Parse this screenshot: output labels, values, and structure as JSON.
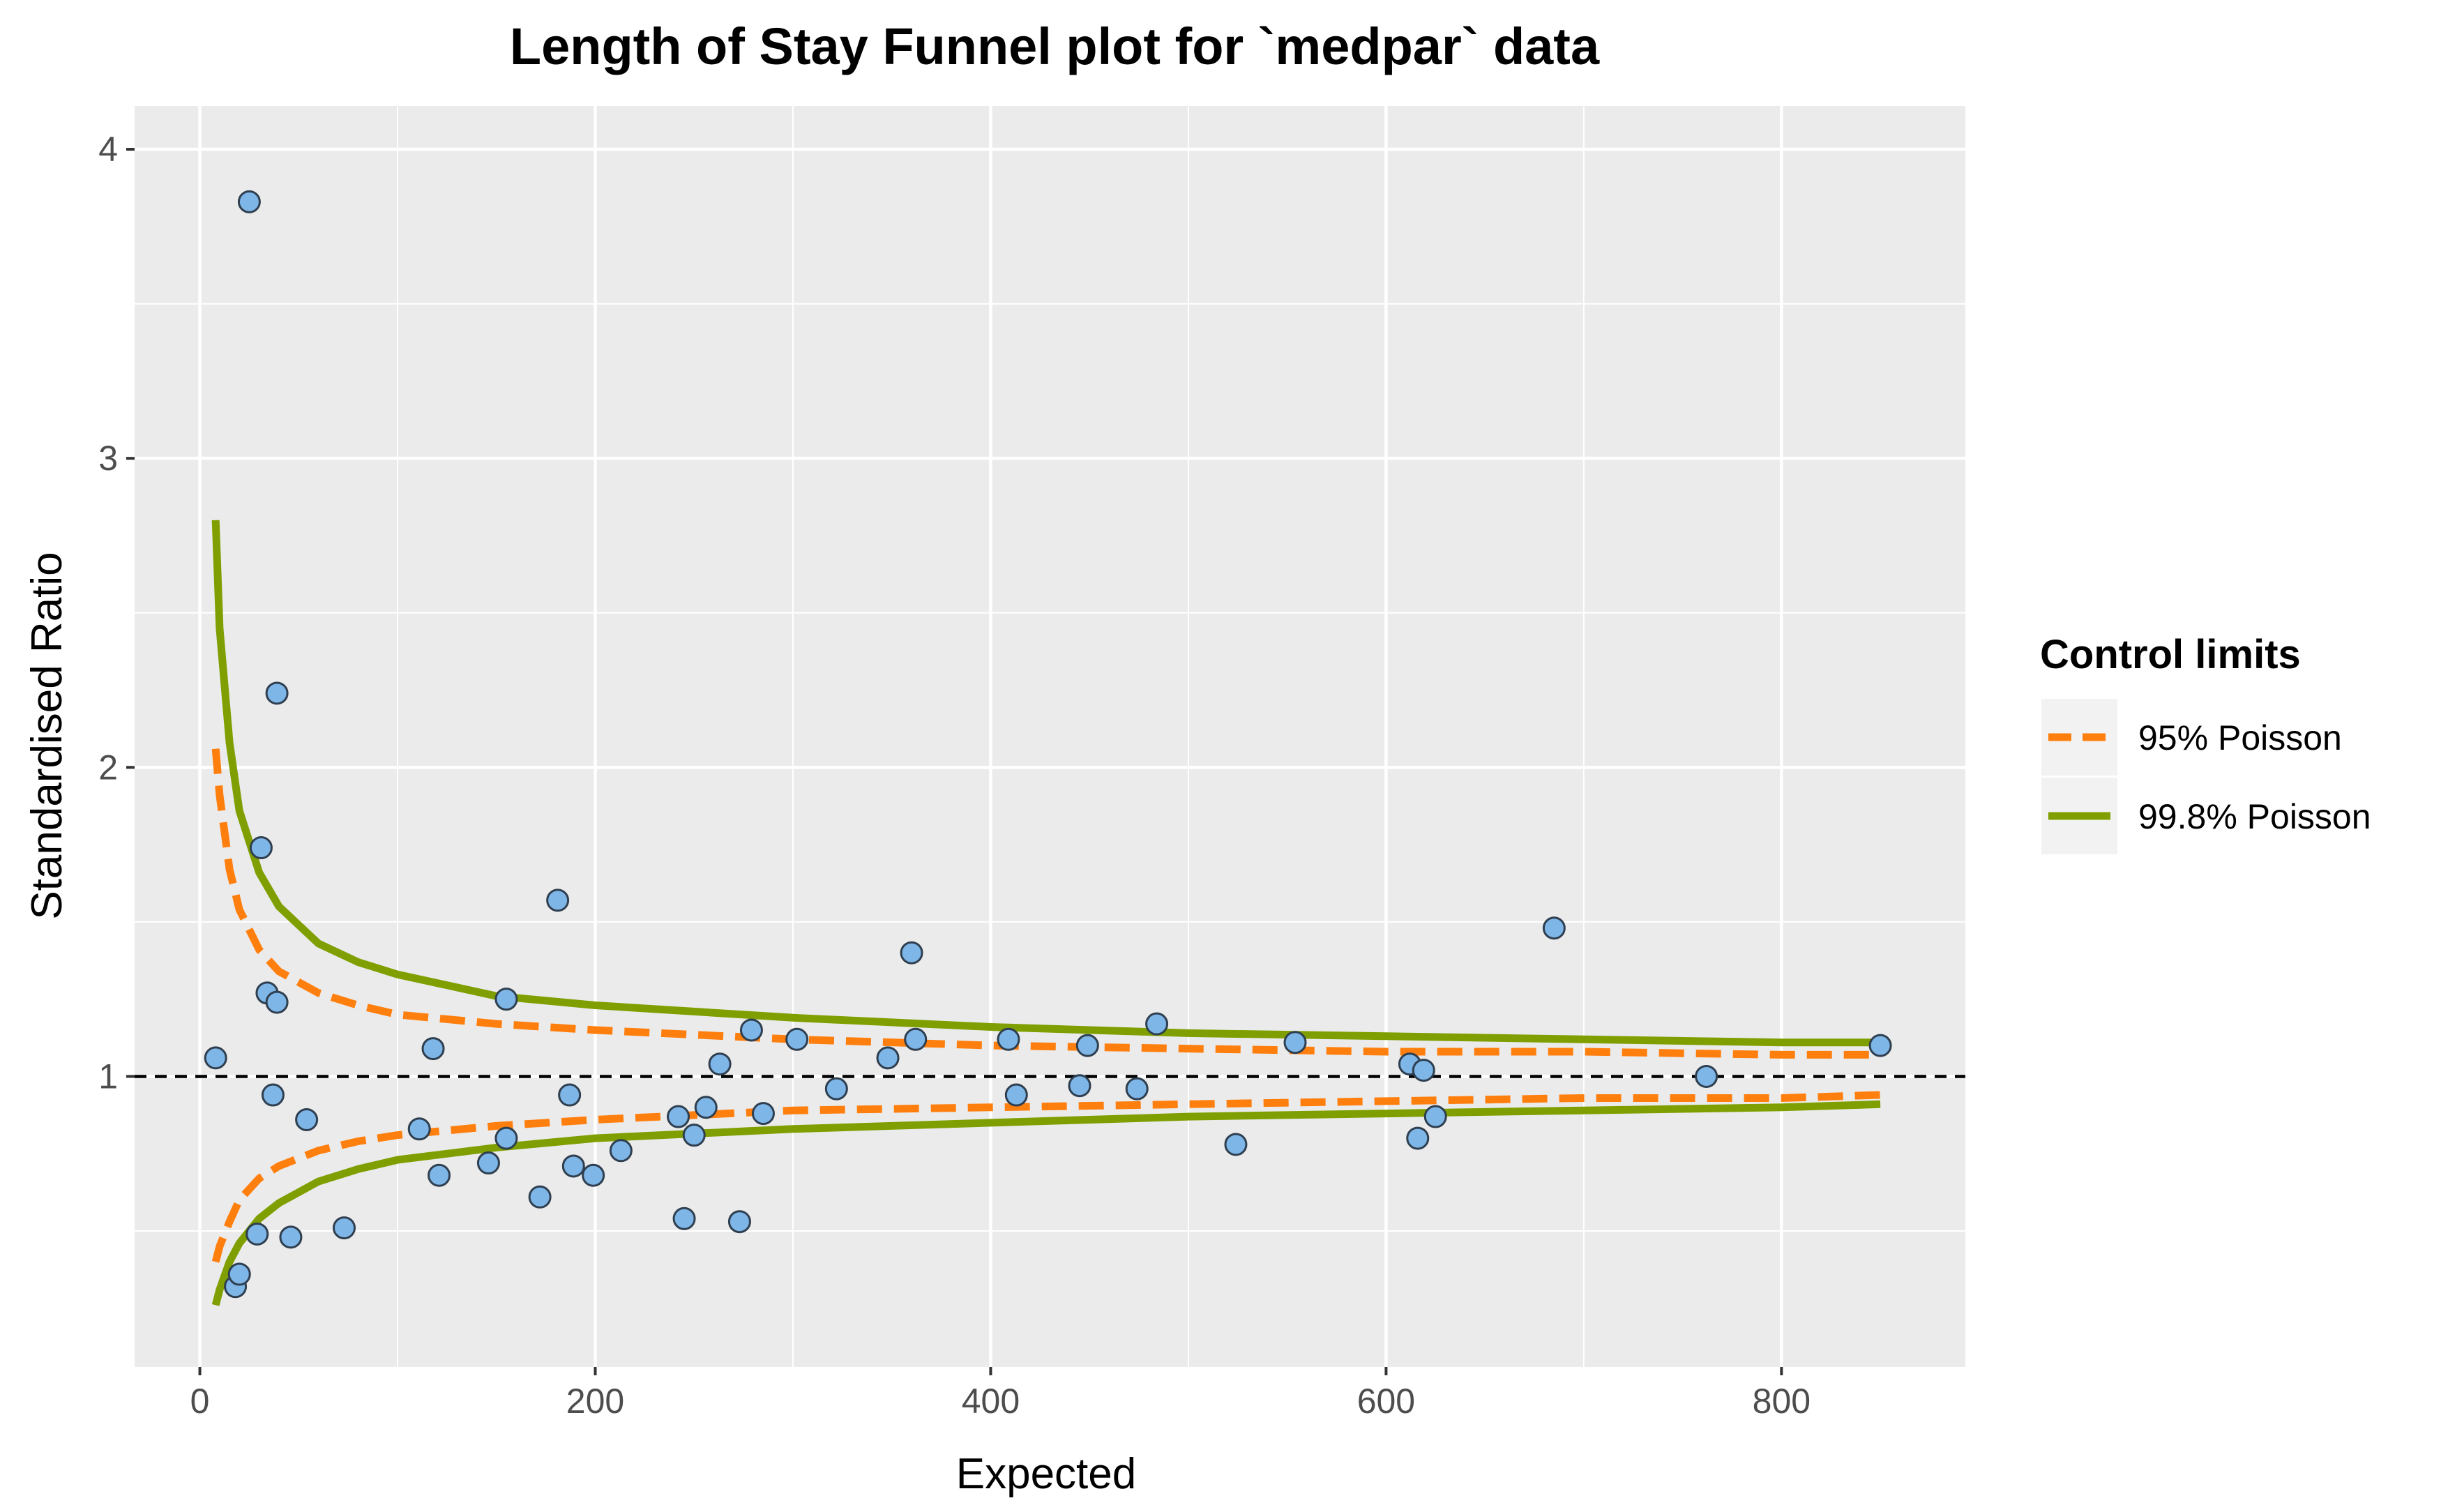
{
  "chart_data": {
    "type": "scatter",
    "title": "Length of Stay Funnel plot for `medpar` data",
    "xlabel": "Expected",
    "ylabel": "Standardised Ratio",
    "xlim": [
      -33,
      893
    ],
    "ylim": [
      0.06,
      4.14
    ],
    "x_ticks": [
      0,
      200,
      400,
      600,
      800
    ],
    "y_ticks": [
      1,
      2,
      3,
      4
    ],
    "x_minor": [
      100,
      300,
      500,
      700
    ],
    "y_minor": [
      0.5,
      1.5,
      2.5,
      3.5
    ],
    "grid": true,
    "background": "#ebebeb",
    "reference_line": {
      "y": 1,
      "style": "dashed",
      "color": "#000000"
    },
    "legend": {
      "title": "Control limits",
      "position": "right",
      "entries": [
        {
          "label": "95% Poisson",
          "color": "#ff7f0e",
          "dash": "dashed"
        },
        {
          "label": "99.8% Poisson",
          "color": "#7f9f00",
          "dash": "solid"
        }
      ]
    },
    "points": {
      "fill": "#7eb6e8",
      "stroke": "#2f3f4f",
      "x": [
        8,
        25,
        39,
        31,
        34,
        39,
        37,
        18,
        20,
        29,
        46,
        54,
        73,
        111,
        118,
        121,
        146,
        155,
        155,
        172,
        181,
        187,
        189,
        199,
        213,
        242,
        245,
        250,
        256,
        263,
        273,
        279,
        285,
        302,
        322,
        348,
        360,
        362,
        409,
        413,
        445,
        449,
        474,
        484,
        524,
        554,
        612,
        616,
        619,
        625,
        685,
        762,
        850
      ],
      "y": [
        1.06,
        3.83,
        2.24,
        1.74,
        1.27,
        1.24,
        0.94,
        0.32,
        0.36,
        0.49,
        0.48,
        0.86,
        0.51,
        0.83,
        1.09,
        0.68,
        0.72,
        0.8,
        1.25,
        0.61,
        1.57,
        0.94,
        0.71,
        0.68,
        0.76,
        0.87,
        0.54,
        0.81,
        0.9,
        1.04,
        0.53,
        1.15,
        0.88,
        1.12,
        0.96,
        1.06,
        1.4,
        1.12,
        1.12,
        0.94,
        0.97,
        1.1,
        0.96,
        1.17,
        0.78,
        1.11,
        1.04,
        0.8,
        1.02,
        0.87,
        1.48,
        1.0,
        1.1
      ]
    },
    "series": [
      {
        "name": "95% Poisson",
        "role": "upper",
        "color": "#ff7f0e",
        "x": [
          8,
          10,
          15,
          20,
          30,
          40,
          60,
          80,
          100,
          150,
          200,
          300,
          400,
          500,
          600,
          700,
          800,
          850
        ],
        "y": [
          2.06,
          1.91,
          1.67,
          1.54,
          1.41,
          1.34,
          1.27,
          1.23,
          1.2,
          1.17,
          1.15,
          1.12,
          1.1,
          1.09,
          1.08,
          1.08,
          1.07,
          1.07
        ]
      },
      {
        "name": "95% Poisson",
        "role": "lower",
        "color": "#ff7f0e",
        "x": [
          8,
          10,
          15,
          20,
          30,
          40,
          60,
          80,
          100,
          150,
          200,
          300,
          400,
          500,
          600,
          700,
          800,
          850
        ],
        "y": [
          0.4,
          0.45,
          0.53,
          0.6,
          0.67,
          0.71,
          0.76,
          0.79,
          0.81,
          0.84,
          0.86,
          0.89,
          0.9,
          0.91,
          0.92,
          0.93,
          0.93,
          0.94
        ]
      },
      {
        "name": "99.8% Poisson",
        "role": "upper",
        "color": "#7f9f00",
        "x": [
          8,
          10,
          15,
          20,
          30,
          40,
          60,
          80,
          100,
          150,
          200,
          300,
          400,
          500,
          600,
          700,
          800,
          850
        ],
        "y": [
          2.8,
          2.45,
          2.08,
          1.86,
          1.66,
          1.55,
          1.43,
          1.37,
          1.33,
          1.26,
          1.23,
          1.19,
          1.16,
          1.14,
          1.13,
          1.12,
          1.11,
          1.11
        ]
      },
      {
        "name": "99.8% Poisson",
        "role": "lower",
        "color": "#7f9f00",
        "x": [
          8,
          10,
          15,
          20,
          30,
          40,
          60,
          80,
          100,
          150,
          200,
          300,
          400,
          500,
          600,
          700,
          800,
          850
        ],
        "y": [
          0.26,
          0.31,
          0.4,
          0.46,
          0.54,
          0.59,
          0.66,
          0.7,
          0.73,
          0.77,
          0.8,
          0.83,
          0.85,
          0.87,
          0.88,
          0.89,
          0.9,
          0.91
        ]
      }
    ]
  }
}
